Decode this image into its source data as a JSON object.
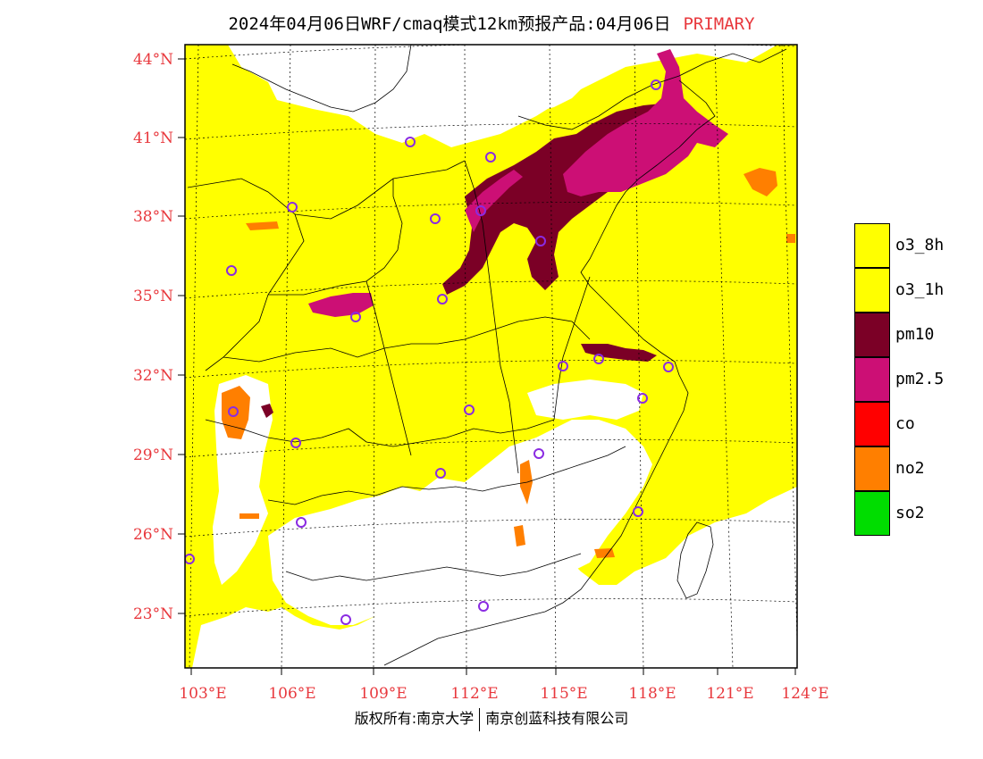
{
  "title": {
    "text": "2024年04月06日WRF/cmaq模式12km预报产品:04月06日",
    "tag": "PRIMARY",
    "tag_color": "#e8383d"
  },
  "map": {
    "lat_labels": [
      "44°N",
      "41°N",
      "38°N",
      "35°N",
      "32°N",
      "29°N",
      "26°N",
      "23°N"
    ],
    "lon_labels": [
      "103°E",
      "106°E",
      "109°E",
      "112°E",
      "115°E",
      "118°E",
      "121°E",
      "124°E"
    ],
    "label_color": "#e8383d",
    "grid_style": "dotted",
    "station_marker_color": "#8a2be2"
  },
  "legend": {
    "items": [
      {
        "label": "o3_8h",
        "color": "#ffff00"
      },
      {
        "label": "o3_1h",
        "color": "#ffff00"
      },
      {
        "label": "pm10",
        "color": "#7b0026"
      },
      {
        "label": "pm2.5",
        "color": "#cc0f75"
      },
      {
        "label": "co",
        "color": "#ff0000"
      },
      {
        "label": "no2",
        "color": "#ff7f00"
      },
      {
        "label": "so2",
        "color": "#00dd00"
      }
    ]
  },
  "copyright": {
    "left": "版权所有:南京大学",
    "right": "南京创蓝科技有限公司"
  }
}
